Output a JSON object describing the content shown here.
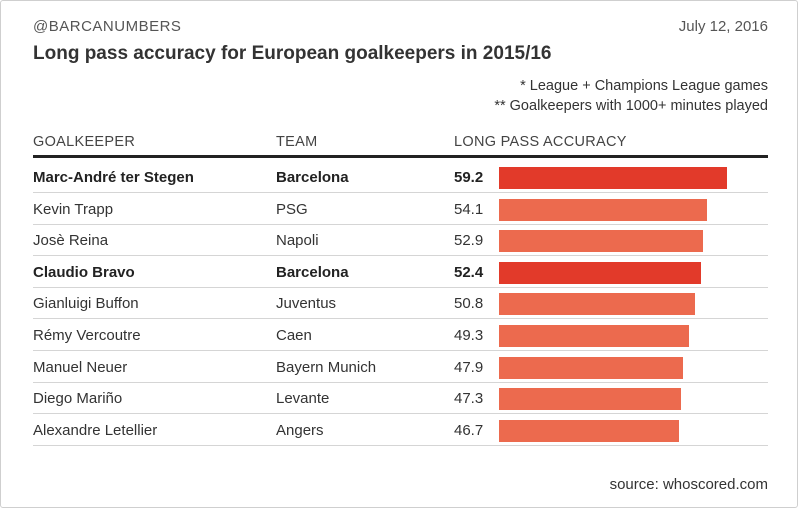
{
  "header": {
    "handle": "@BARCANUMBERS",
    "date": "July 12, 2016",
    "title": "Long pass accuracy for European goalkeepers in 2015/16",
    "notes": [
      "* League + Champions League games",
      "** Goalkeepers with 1000+ minutes played"
    ]
  },
  "colors": {
    "highlight": "#e23a2a",
    "normal": "#ec6a4e"
  },
  "chart_data": {
    "type": "table",
    "title": "Long pass accuracy for European goalkeepers in 2015/16",
    "columns": [
      "GOALKEEPER",
      "TEAM",
      "LONG PASS ACCURACY"
    ],
    "xlim": [
      0,
      60
    ],
    "rows": [
      {
        "goalkeeper": "Marc-André ter Stegen",
        "team": "Barcelona",
        "value": 59.2,
        "label": "59.2",
        "highlight": true
      },
      {
        "goalkeeper": "Kevin Trapp",
        "team": "PSG",
        "value": 54.1,
        "label": "54.1",
        "highlight": false
      },
      {
        "goalkeeper": "Josè Reina",
        "team": "Napoli",
        "value": 52.9,
        "label": "52.9",
        "highlight": false
      },
      {
        "goalkeeper": "Claudio Bravo",
        "team": "Barcelona",
        "value": 52.4,
        "label": "52.4",
        "highlight": true
      },
      {
        "goalkeeper": "Gianluigi Buffon",
        "team": "Juventus",
        "value": 50.8,
        "label": "50.8",
        "highlight": false
      },
      {
        "goalkeeper": "Rémy Vercoutre",
        "team": "Caen",
        "value": 49.3,
        "label": "49.3",
        "highlight": false
      },
      {
        "goalkeeper": "Manuel Neuer",
        "team": "Bayern Munich",
        "value": 47.9,
        "label": "47.9",
        "highlight": false
      },
      {
        "goalkeeper": "Diego Mariño",
        "team": "Levante",
        "value": 47.3,
        "label": "47.3",
        "highlight": false
      },
      {
        "goalkeeper": "Alexandre Letellier",
        "team": "Angers",
        "value": 46.7,
        "label": "46.7",
        "highlight": false
      }
    ]
  },
  "footer": {
    "source": "source: whoscored.com"
  }
}
